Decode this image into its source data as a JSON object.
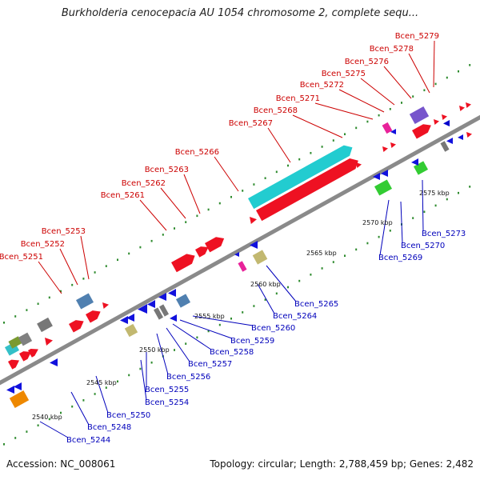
{
  "title": "Burkholderia cenocepacia AU 1054 chromosome 2, complete sequ...",
  "footer": {
    "accession": "Accession: NC_008061",
    "topology": "Topology: circular; Length: 2,788,459 bp; Genes: 2,482"
  },
  "colors": {
    "backbone": "#8a8a8a",
    "tick": "#2e8b2e",
    "forward_label": "#cc0000",
    "reverse_label": "#0000bb",
    "leader": "#333333"
  },
  "scale_labels": [
    "2540 kbp",
    "2545 kbp",
    "2550 kbp",
    "2555 kbp",
    "2560 kbp",
    "2565 kbp",
    "2570 kbp",
    "2575 kbp"
  ],
  "forward_genes": [
    "Bcen_5251",
    "Bcen_5252",
    "Bcen_5253",
    "Bcen_5261",
    "Bcen_5262",
    "Bcen_5263",
    "Bcen_5266",
    "Bcen_5267",
    "Bcen_5268",
    "Bcen_5271",
    "Bcen_5272",
    "Bcen_5275",
    "Bcen_5276",
    "Bcen_5278",
    "Bcen_5279"
  ],
  "reverse_genes": [
    "Bcen_5244",
    "Bcen_5248",
    "Bcen_5250",
    "Bcen_5254",
    "Bcen_5255",
    "Bcen_5256",
    "Bcen_5257",
    "Bcen_5258",
    "Bcen_5259",
    "Bcen_5260",
    "Bcen_5264",
    "Bcen_5265",
    "Bcen_5269",
    "Bcen_5270",
    "Bcen_5273"
  ]
}
